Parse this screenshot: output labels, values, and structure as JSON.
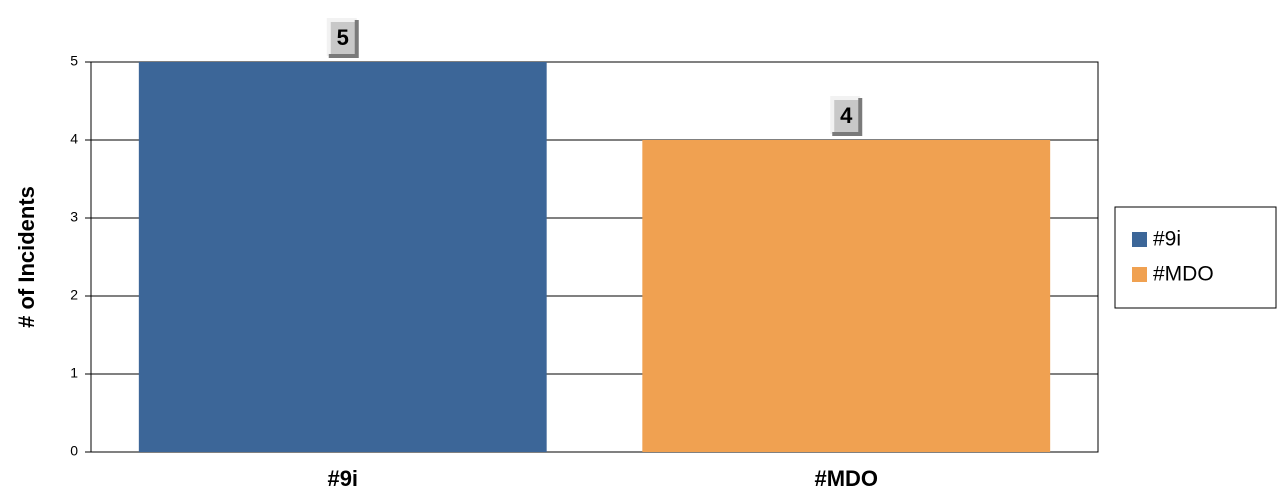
{
  "chart_data": {
    "type": "bar",
    "y_label": "# of Incidents",
    "categories": [
      "#9i",
      "#MDO"
    ],
    "values": [
      5,
      4
    ],
    "colors": [
      "#3c6698",
      "#f0a151"
    ],
    "ylim": [
      0,
      5
    ],
    "yticks": [
      0,
      1,
      2,
      3,
      4,
      5
    ],
    "grid": true,
    "legend": "right"
  }
}
